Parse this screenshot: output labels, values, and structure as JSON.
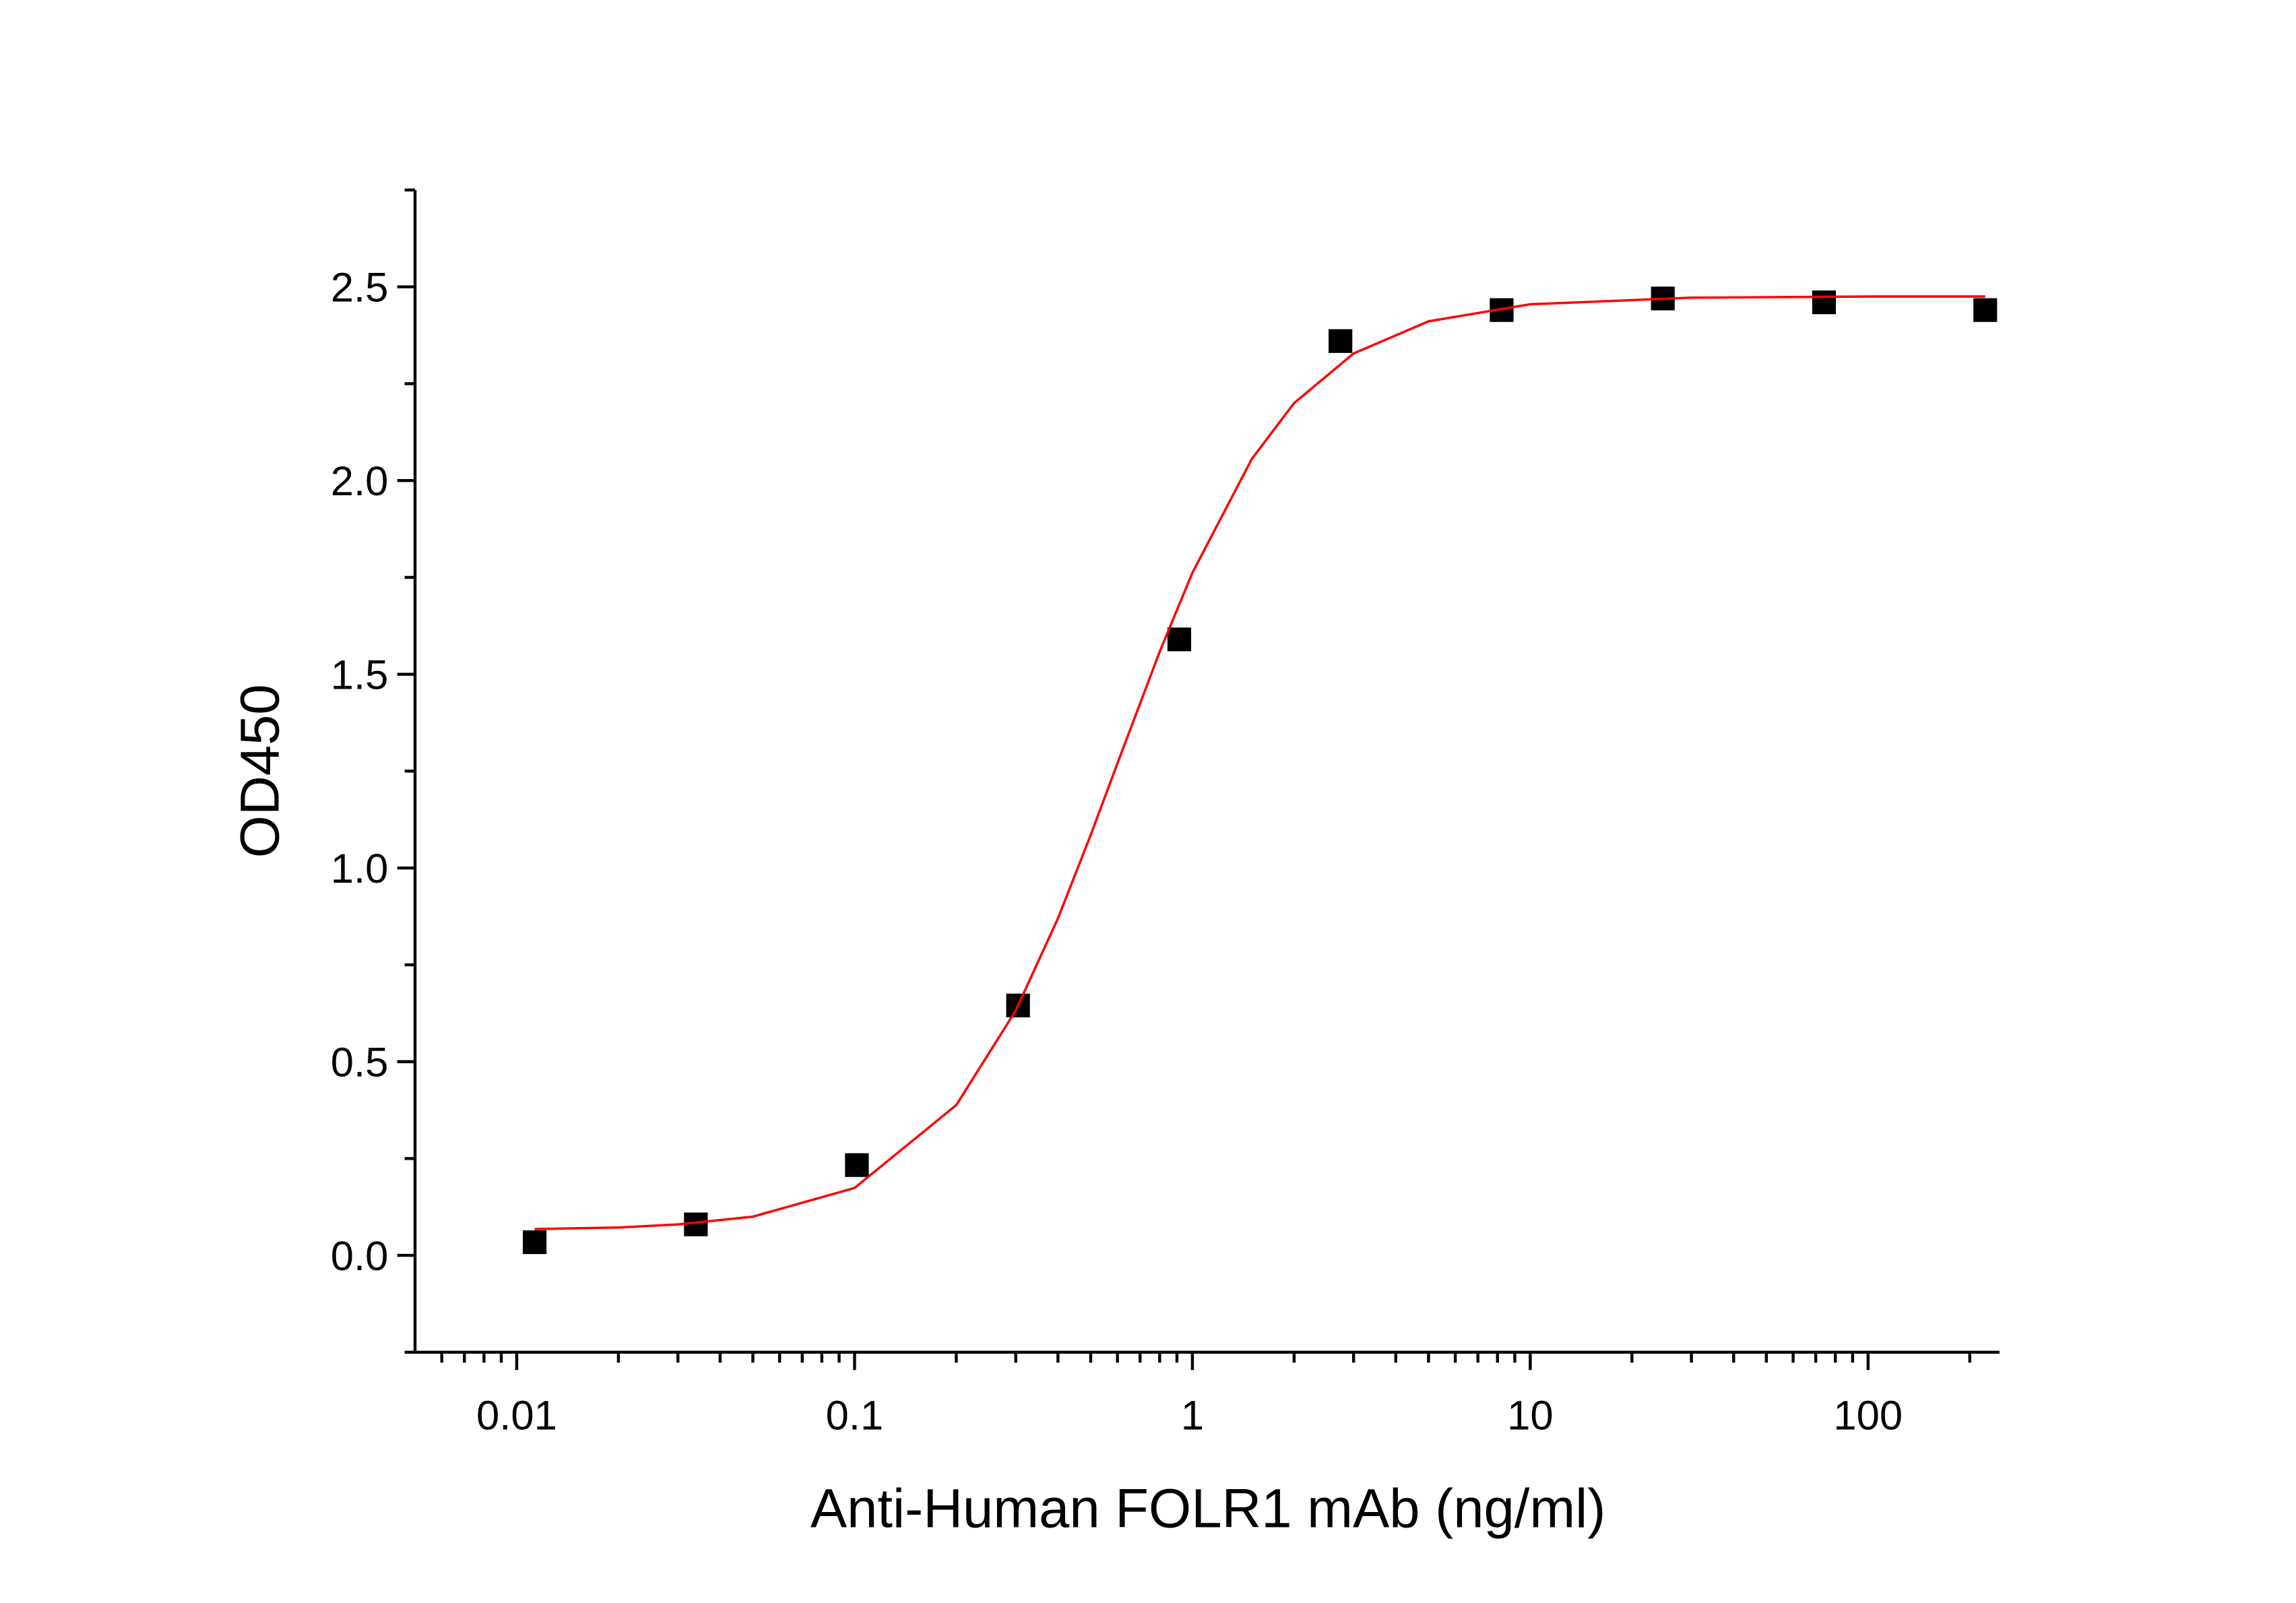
{
  "chart_data": {
    "type": "scatter",
    "xlabel": "Anti-Human FOLR1 mAb (ng/ml)",
    "ylabel": "OD450",
    "xscale": "log",
    "xlim": [
      0.005,
      245
    ],
    "ylim": [
      -0.25,
      2.75
    ],
    "xticks": [
      0.01,
      0.1,
      1,
      10,
      100
    ],
    "xminorticks": [
      0.006,
      0.007,
      0.008,
      0.009,
      0.02,
      0.03,
      0.04,
      0.05,
      0.06,
      0.07,
      0.08,
      0.09,
      0.2,
      0.3,
      0.4,
      0.5,
      0.6,
      0.7,
      0.8,
      0.9,
      2,
      3,
      4,
      5,
      6,
      7,
      8,
      9,
      20,
      30,
      40,
      50,
      60,
      70,
      80,
      90,
      200
    ],
    "yticks": [
      {
        "value": 0,
        "label": "0.0"
      },
      {
        "value": 0.5,
        "label": "0.5"
      },
      {
        "value": 1,
        "label": "1.0"
      },
      {
        "value": 1.5,
        "label": "1.5"
      },
      {
        "value": 2,
        "label": "2.0"
      },
      {
        "value": 2.5,
        "label": "2.5"
      }
    ],
    "yminorticks": [
      -0.25,
      0.25,
      0.75,
      1.25,
      1.75,
      2.25,
      2.75
    ],
    "series": [
      {
        "color": "#000000",
        "marker": "square",
        "x": [
          0.0113,
          0.0339,
          0.1016,
          0.3048,
          0.9145,
          2.743,
          8.23,
          24.69,
          74.07,
          222.22
        ],
        "values": [
          0.034,
          0.08,
          0.233,
          0.645,
          1.59,
          2.36,
          2.44,
          2.47,
          2.46,
          2.44
        ]
      },
      {
        "color": "#ff0000",
        "marker": "line",
        "x": [
          0.0113,
          0.02,
          0.03,
          0.05,
          0.1,
          0.2,
          0.3,
          0.4,
          0.5,
          0.6,
          0.8,
          1,
          1.5,
          2,
          3,
          5,
          10,
          30,
          100,
          222.22
        ],
        "values": [
          0.068,
          0.072,
          0.08,
          0.1,
          0.174,
          0.388,
          0.632,
          0.87,
          1.085,
          1.27,
          1.558,
          1.762,
          2.056,
          2.2,
          2.328,
          2.411,
          2.455,
          2.472,
          2.475,
          2.475
        ]
      }
    ]
  }
}
